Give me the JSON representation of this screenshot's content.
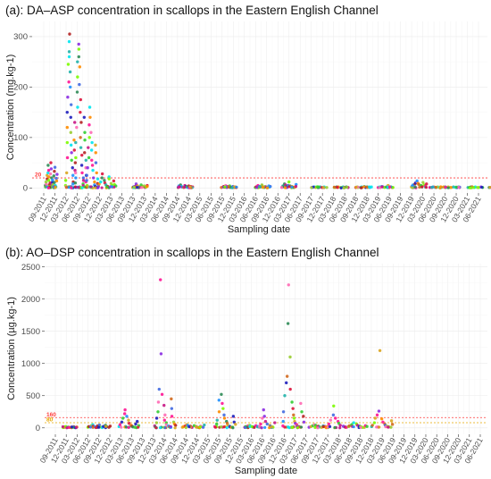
{
  "chart_data": [
    {
      "type": "scatter",
      "title": "(a): DA–ASP concentration in scallops in the Eastern English Channel",
      "xlabel": "Sampling date",
      "ylabel": "Concentration (mg.kg-1)",
      "ylim": [
        -10,
        330
      ],
      "yticks": [
        0,
        100,
        200,
        300
      ],
      "x_ticks": [
        "09-2011",
        "12-2011",
        "03-2012",
        "06-2012",
        "09-2012",
        "12-2012",
        "03-2013",
        "06-2013",
        "09-2013",
        "12-2013",
        "03-2014",
        "06-2014",
        "09-2014",
        "12-2014",
        "03-2015",
        "06-2015",
        "09-2015",
        "12-2015",
        "03-2016",
        "06-2016",
        "09-2016",
        "12-2016",
        "03-2017",
        "06-2017",
        "09-2017",
        "12-2017",
        "03-2018",
        "06-2018",
        "09-2018",
        "12-2018",
        "03-2019",
        "06-2019",
        "09-2019",
        "12-2019",
        "03-2020",
        "06-2020",
        "09-2020",
        "12-2020",
        "03-2021",
        "06-2021"
      ],
      "threshold": {
        "value": 20,
        "label": "20",
        "color": "#ff3b3b"
      },
      "grid": true,
      "x_unit": "months since 09-2011",
      "clusters": [
        {
          "start": 0.5,
          "end": 3.5,
          "values": [
            2,
            5,
            8,
            12,
            18,
            25,
            30,
            45,
            35,
            22,
            15,
            10,
            6,
            4,
            28,
            38,
            50,
            20,
            9,
            3,
            12,
            16,
            7,
            24,
            33,
            41,
            11,
            5,
            2,
            19,
            27,
            14
          ]
        },
        {
          "start": 6.0,
          "end": 8.5,
          "values": [
            5,
            15,
            30,
            60,
            90,
            120,
            150,
            180,
            210,
            245,
            260,
            290,
            305,
            270,
            230,
            200,
            165,
            140,
            110,
            85,
            70,
            55,
            40,
            25,
            12,
            8,
            95,
            130,
            75,
            50,
            35,
            20
          ]
        },
        {
          "start": 8.5,
          "end": 11.5,
          "values": [
            10,
            30,
            60,
            90,
            120,
            160,
            190,
            220,
            250,
            275,
            285,
            260,
            240,
            205,
            175,
            150,
            130,
            100,
            80,
            65,
            45,
            30,
            20,
            15,
            8,
            5,
            110,
            140,
            95,
            70,
            55,
            40,
            25,
            12
          ]
        },
        {
          "start": 11.5,
          "end": 14.5,
          "values": [
            5,
            15,
            25,
            40,
            60,
            80,
            100,
            125,
            160,
            140,
            110,
            90,
            75,
            55,
            45,
            35,
            20,
            12,
            6,
            3,
            70,
            85,
            50,
            30,
            18,
            9
          ]
        },
        {
          "start": 14.5,
          "end": 19.5,
          "values": [
            2,
            4,
            8,
            12,
            20,
            28,
            15,
            10,
            6,
            3,
            22,
            18,
            9,
            5,
            2,
            14,
            7,
            4
          ]
        },
        {
          "start": 24.0,
          "end": 28.0,
          "values": [
            1,
            2,
            3,
            5,
            8,
            4,
            2,
            1,
            6,
            3,
            2,
            4,
            1,
            2,
            5,
            3
          ]
        },
        {
          "start": 36.0,
          "end": 40.0,
          "values": [
            1,
            2,
            4,
            6,
            3,
            2,
            1,
            5,
            3,
            2,
            1,
            4,
            2,
            3,
            1,
            2
          ]
        },
        {
          "start": 48.0,
          "end": 52.0,
          "values": [
            1,
            2,
            3,
            5,
            2,
            1,
            3,
            2,
            4,
            1,
            2,
            3,
            1,
            2,
            2,
            1
          ]
        },
        {
          "start": 57.0,
          "end": 61.0,
          "values": [
            1,
            2,
            3,
            5,
            3,
            2,
            4,
            6,
            2,
            1,
            3,
            2,
            1,
            4,
            2,
            3
          ]
        },
        {
          "start": 64.0,
          "end": 68.0,
          "values": [
            1,
            2,
            4,
            8,
            6,
            3,
            2,
            5,
            12,
            4,
            2,
            3,
            1,
            2,
            7,
            3
          ]
        },
        {
          "start": 72.0,
          "end": 76.0,
          "values": [
            1,
            1,
            2,
            1,
            2,
            1,
            1,
            2,
            1,
            1,
            2,
            1
          ]
        },
        {
          "start": 78.0,
          "end": 82.0,
          "values": [
            1,
            1,
            2,
            1,
            2,
            1,
            1,
            2,
            1,
            2,
            1,
            1
          ]
        },
        {
          "start": 84.0,
          "end": 88.0,
          "values": [
            1,
            2,
            1,
            1,
            2,
            1,
            3,
            1,
            2,
            1,
            1,
            2
          ]
        },
        {
          "start": 90.0,
          "end": 94.0,
          "values": [
            1,
            2,
            1,
            3,
            2,
            1,
            2,
            5,
            1,
            2,
            1,
            1
          ]
        },
        {
          "start": 99.0,
          "end": 103.0,
          "values": [
            2,
            4,
            6,
            8,
            10,
            12,
            14,
            9,
            7,
            5,
            3,
            2,
            11,
            6,
            4,
            8
          ]
        },
        {
          "start": 104.0,
          "end": 108.0,
          "values": [
            1,
            1,
            2,
            1,
            1,
            2,
            1,
            1,
            2,
            1
          ]
        },
        {
          "start": 108.0,
          "end": 112.0,
          "values": [
            1,
            1,
            2,
            1,
            1,
            2,
            1,
            1,
            2,
            1
          ]
        },
        {
          "start": 114.0,
          "end": 118.0,
          "values": [
            1,
            1,
            2,
            1,
            1,
            2,
            1,
            1,
            2,
            1
          ]
        },
        {
          "start": 120.0,
          "end": 124.0,
          "values": [
            1,
            1,
            2,
            1,
            1,
            2,
            1,
            1,
            2,
            1
          ]
        }
      ]
    },
    {
      "type": "scatter",
      "title": "(b): AO–DSP concentration in scallops in the Eastern English Channel",
      "xlabel": "Sampling date",
      "ylabel": "Concentration (µg.kg-1)",
      "ylim": [
        -100,
        2550
      ],
      "yticks": [
        0,
        500,
        1000,
        1500,
        2000,
        2500
      ],
      "x_ticks": [
        "09-2011",
        "12-2011",
        "03-2012",
        "06-2012",
        "09-2012",
        "12-2012",
        "03-2013",
        "06-2013",
        "09-2013",
        "12-2013",
        "03-2014",
        "06-2014",
        "09-2014",
        "12-2014",
        "03-2015",
        "06-2015",
        "09-2015",
        "12-2015",
        "03-2016",
        "06-2016",
        "09-2016",
        "12-2016",
        "03-2017",
        "06-2017",
        "09-2017",
        "12-2017",
        "03-2018",
        "06-2018",
        "09-2018",
        "12-2018",
        "03-2019",
        "06-2019",
        "09-2019",
        "12-2019",
        "03-2020",
        "06-2020",
        "09-2020",
        "12-2020",
        "03-2021",
        "06-2021"
      ],
      "thresholds": [
        {
          "value": 160,
          "label": "160",
          "color": "#ff3b3b"
        },
        {
          "value": 80,
          "label": "80",
          "color": "#e6a800"
        }
      ],
      "grid": true,
      "x_unit": "months since 09-2011",
      "clusters": [
        {
          "start": 2.0,
          "end": 6.0,
          "values": [
            5,
            10,
            15,
            20,
            8,
            12,
            6,
            4,
            18,
            9,
            3,
            14
          ]
        },
        {
          "start": 9.0,
          "end": 15.0,
          "values": [
            10,
            20,
            35,
            50,
            25,
            15,
            8,
            30,
            45,
            12,
            5,
            22,
            40,
            18,
            9,
            28
          ]
        },
        {
          "start": 17.5,
          "end": 23.0,
          "values": [
            20,
            50,
            90,
            150,
            220,
            280,
            180,
            120,
            70,
            40,
            25,
            15,
            10,
            60,
            100,
            35
          ]
        },
        {
          "start": 27.5,
          "end": 33.0,
          "values": [
            30,
            80,
            150,
            250,
            400,
            600,
            2300,
            1150,
            520,
            350,
            200,
            120,
            80,
            50,
            30,
            20,
            10,
            450,
            300,
            180,
            90,
            60,
            40
          ]
        },
        {
          "start": 35.0,
          "end": 41.0,
          "values": [
            10,
            20,
            30,
            50,
            40,
            25,
            15,
            8,
            35,
            22,
            12,
            5,
            28,
            18,
            9,
            45
          ]
        },
        {
          "start": 44.0,
          "end": 49.5,
          "values": [
            20,
            60,
            120,
            250,
            430,
            520,
            380,
            300,
            200,
            150,
            100,
            70,
            40,
            25,
            15,
            10,
            180,
            90,
            55
          ]
        },
        {
          "start": 52.0,
          "end": 56.0,
          "values": [
            10,
            20,
            30,
            40,
            25,
            15,
            8,
            35,
            22,
            12
          ]
        },
        {
          "start": 56.0,
          "end": 60.5,
          "values": [
            20,
            60,
            150,
            280,
            180,
            100,
            60,
            40,
            25,
            15,
            10,
            80
          ]
        },
        {
          "start": 62.5,
          "end": 68.5,
          "values": [
            30,
            100,
            250,
            500,
            700,
            800,
            1620,
            2220,
            1100,
            600,
            400,
            300,
            200,
            150,
            100,
            70,
            50,
            30,
            20,
            15,
            10,
            380,
            250,
            180,
            90
          ]
        },
        {
          "start": 70.0,
          "end": 75.0,
          "values": [
            10,
            20,
            35,
            50,
            40,
            25,
            15,
            8,
            30,
            22,
            12,
            5
          ]
        },
        {
          "start": 75.0,
          "end": 80.0,
          "values": [
            20,
            60,
            120,
            200,
            340,
            150,
            100,
            70,
            40,
            25,
            15,
            10
          ]
        },
        {
          "start": 80.0,
          "end": 86.0,
          "values": [
            10,
            20,
            30,
            50,
            80,
            60,
            40,
            25,
            15,
            8,
            35,
            22
          ]
        },
        {
          "start": 87.0,
          "end": 93.0,
          "values": [
            20,
            40,
            80,
            150,
            200,
            260,
            1200,
            140,
            90,
            60,
            40,
            25,
            15,
            10,
            110,
            55
          ]
        }
      ]
    }
  ],
  "colors": [
    "#7cfc00",
    "#00e5ee",
    "#ff1493",
    "#d2691e",
    "#2e8b57",
    "#8a2be2",
    "#1e1ebd",
    "#b22222",
    "#ff8c00",
    "#ff69b4",
    "#32cd32",
    "#4169e1",
    "#c71585",
    "#20b2aa",
    "#daa520",
    "#9acd32",
    "#1e90ff",
    "#dc143c"
  ]
}
